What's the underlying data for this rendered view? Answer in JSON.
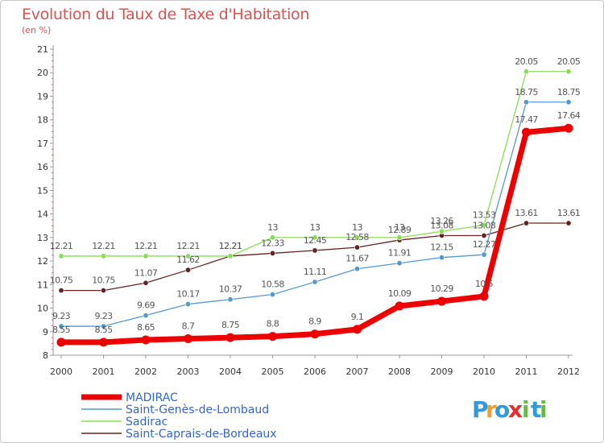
{
  "header": {
    "title": "Evolution du Taux de Taxe d'Habitation",
    "subtitle": "(en %)"
  },
  "logo": {
    "text": "Proxiti",
    "letters": [
      {
        "ch": "P",
        "color": "#3399dd"
      },
      {
        "ch": "r",
        "color": "#f0a030"
      },
      {
        "ch": "o",
        "color": "#3399dd"
      },
      {
        "ch": "x",
        "color": "#e03030"
      },
      {
        "ch": "i",
        "color": "#66bb44"
      },
      {
        "ch": "t",
        "color": "#3399dd"
      },
      {
        "ch": "i",
        "color": "#66bb44"
      }
    ]
  },
  "chart_data": {
    "type": "line",
    "title": "Evolution du Taux de Taxe d'Habitation",
    "ylabel": "(en %)",
    "x": [
      "2000",
      "2001",
      "2002",
      "2003",
      "2004",
      "2005",
      "2006",
      "2007",
      "2008",
      "2009",
      "2010",
      "2011",
      "2012"
    ],
    "ylim": [
      8,
      21
    ],
    "yticks": [
      8,
      9,
      10,
      11,
      12,
      13,
      14,
      15,
      16,
      17,
      18,
      19,
      20,
      21
    ],
    "grid": false,
    "legend_position": "bottom-left",
    "series": [
      {
        "name": "MADIRAC",
        "color": "#ee0000",
        "values": [
          8.55,
          8.55,
          8.65,
          8.7,
          8.75,
          8.8,
          8.9,
          9.1,
          10.09,
          10.29,
          10.5,
          17.47,
          17.64
        ],
        "labels": [
          "8.55",
          "8.55",
          "8.65",
          "8.7",
          "8.75",
          "8.8",
          "8.9",
          "9.1",
          "10.09",
          "10.29",
          "10.5",
          "17.47",
          "17.64"
        ]
      },
      {
        "name": "Saint-Genès-de-Lombaud",
        "color": "#5599cc",
        "values": [
          9.23,
          9.23,
          9.69,
          10.17,
          10.37,
          10.58,
          11.11,
          11.67,
          11.91,
          12.15,
          12.27,
          18.75,
          18.75
        ],
        "labels": [
          "9.23",
          "9.23",
          "9.69",
          "10.17",
          "10.37",
          "10.58",
          "11.11",
          "11.67",
          "11.91",
          "12.15",
          "12.27",
          "18.75",
          "18.75"
        ]
      },
      {
        "name": "Sadirac",
        "color": "#88dd55",
        "values": [
          12.21,
          12.21,
          12.21,
          12.21,
          12.21,
          13,
          13,
          13,
          13,
          13.26,
          13.53,
          20.05,
          20.05
        ],
        "labels": [
          "12.21",
          "12.21",
          "12.21",
          "12.21",
          "12.21",
          "13",
          "13",
          "13",
          "13",
          "13.26",
          "13.53",
          "20.05",
          "20.05"
        ]
      },
      {
        "name": "Saint-Caprais-de-Bordeaux",
        "color": "#662222",
        "values": [
          10.75,
          10.75,
          11.07,
          11.62,
          12.21,
          12.33,
          12.45,
          12.58,
          12.89,
          13.08,
          13.08,
          13.61,
          13.61
        ],
        "labels": [
          "10.75",
          "10.75",
          "11.07",
          "11.62",
          "12.21",
          "12.33",
          "12.45",
          "12.58",
          "12.89",
          "13.08",
          "13.08",
          "13.61",
          "13.61"
        ]
      }
    ]
  }
}
